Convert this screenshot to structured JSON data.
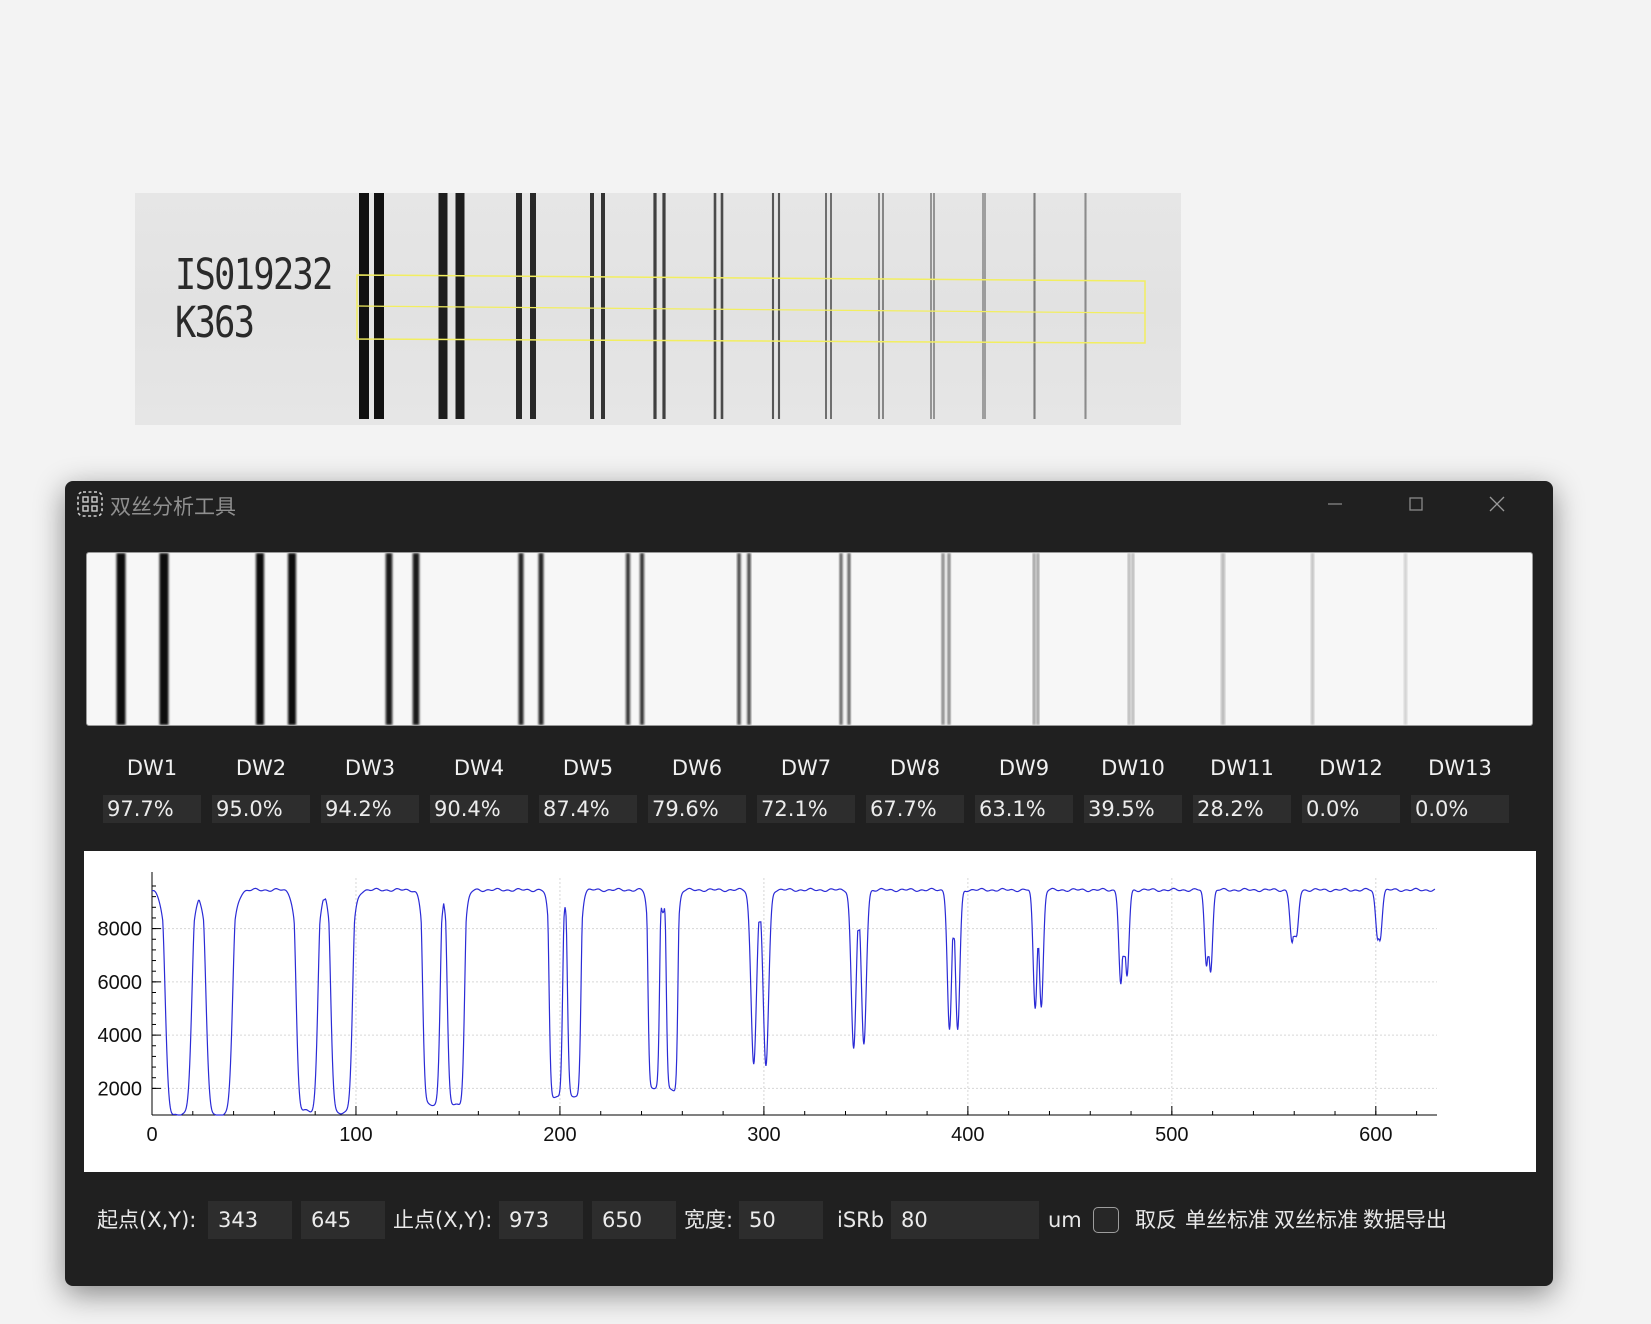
{
  "target": {
    "label_line1": "IS019232",
    "label_line2": "K363"
  },
  "window": {
    "title": "双丝分析工具",
    "icon": "dashed-grid-icon"
  },
  "dw_items": [
    {
      "label": "DW1",
      "value": "97.7%"
    },
    {
      "label": "DW2",
      "value": "95.0%"
    },
    {
      "label": "DW3",
      "value": "94.2%"
    },
    {
      "label": "DW4",
      "value": "90.4%"
    },
    {
      "label": "DW5",
      "value": "87.4%"
    },
    {
      "label": "DW6",
      "value": "79.6%"
    },
    {
      "label": "DW7",
      "value": "72.1%"
    },
    {
      "label": "DW8",
      "value": "67.7%"
    },
    {
      "label": "DW9",
      "value": "63.1%"
    },
    {
      "label": "DW10",
      "value": "39.5%"
    },
    {
      "label": "DW11",
      "value": "28.2%"
    },
    {
      "label": "DW12",
      "value": "0.0%"
    },
    {
      "label": "DW13",
      "value": "0.0%"
    }
  ],
  "controls": {
    "start_label": "起点(X,Y):",
    "start_x": "343",
    "start_y": "645",
    "end_label": "止点(X,Y):",
    "end_x": "973",
    "end_y": "650",
    "width_label": "宽度:",
    "width_value": "50",
    "isrb_label": "iSRb",
    "isrb_value": "80",
    "unit": "um",
    "invert_label": "取反",
    "invert_checked": false,
    "single_std": "单丝标准",
    "double_std": "双丝标准",
    "export": "数据导出"
  },
  "chart_data": {
    "type": "line",
    "title": "",
    "xlabel": "",
    "ylabel": "",
    "xlim": [
      0,
      630
    ],
    "ylim": [
      1000,
      9900
    ],
    "x_ticks": [
      0,
      100,
      200,
      300,
      400,
      500,
      600
    ],
    "y_ticks": [
      2000,
      4000,
      6000,
      8000
    ],
    "grid": true,
    "line_color": "#2b2bd6",
    "baseline": 9450,
    "dips": [
      {
        "x1": 13,
        "x2": 33,
        "min1": 1000,
        "min2": 1000,
        "mid": 9100,
        "half_width": 5.5
      },
      {
        "x1": 76,
        "x2": 93,
        "min1": 1150,
        "min2": 1100,
        "mid": 9050,
        "half_width": 4.5
      },
      {
        "x1": 137,
        "x2": 149,
        "min1": 1400,
        "min2": 1400,
        "mid": 9000,
        "half_width": 3.6
      },
      {
        "x1": 198,
        "x2": 207,
        "min1": 1700,
        "min2": 1700,
        "mid": 8800,
        "half_width": 2.8
      },
      {
        "x1": 246,
        "x2": 255,
        "min1": 2050,
        "min2": 1950,
        "mid": 8600,
        "half_width": 2.4
      },
      {
        "x1": 295,
        "x2": 301,
        "min1": 2950,
        "min2": 2850,
        "mid": 8200,
        "half_width": 1.9
      },
      {
        "x1": 344,
        "x2": 349,
        "min1": 3500,
        "min2": 3650,
        "mid": 7900,
        "half_width": 1.7
      },
      {
        "x1": 391,
        "x2": 395,
        "min1": 4200,
        "min2": 4200,
        "mid": 7600,
        "half_width": 1.5
      },
      {
        "x1": 433,
        "x2": 436,
        "min1": 5000,
        "min2": 5050,
        "mid": 7300,
        "half_width": 1.4
      },
      {
        "x1": 475,
        "x2": 478,
        "min1": 5900,
        "min2": 6200,
        "mid": 6900,
        "half_width": 1.4
      },
      {
        "x1": 517,
        "x2": 519,
        "min1": 6600,
        "min2": 6400,
        "mid": 7000,
        "half_width": 1.4
      },
      {
        "x1": 559,
        "x2": 561,
        "min1": 7450,
        "min2": 7650,
        "mid": 7650,
        "half_width": 1.5
      },
      {
        "x1": 601,
        "x2": 602,
        "min1": 7600,
        "min2": 7600,
        "mid": 7650,
        "half_width": 1.5
      }
    ]
  }
}
